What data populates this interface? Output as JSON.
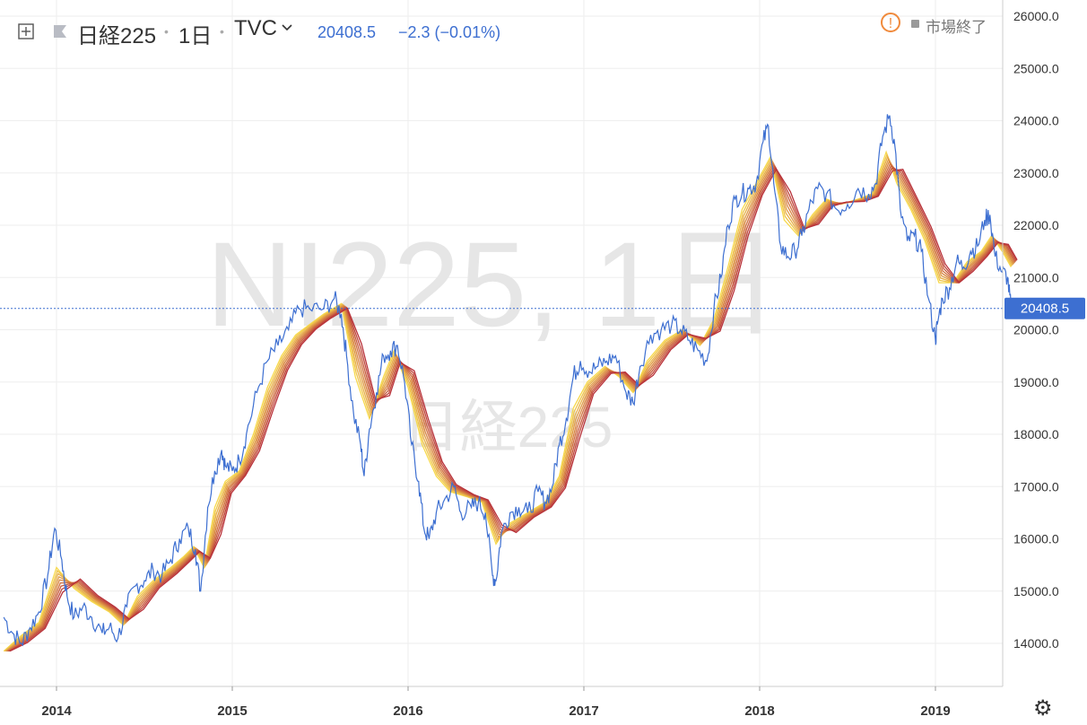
{
  "header": {
    "symbol": "日経225",
    "interval": "1日",
    "exchange": "TVC",
    "price": "20408.5",
    "change": "−2.3 (−0.01%)",
    "status": "市場終了"
  },
  "watermark": {
    "primary": "NI225, 1日",
    "secondary": "日経225"
  },
  "colors": {
    "price_line": "#3d6fd1",
    "ribbon_fast": "#f7d94c",
    "ribbon_slow": "#b8323a",
    "price_tag": "#3d6fd1",
    "grid": "#eeeeee"
  },
  "chart_data": {
    "type": "line",
    "ylim": [
      13200,
      26200
    ],
    "y_ticks": [
      "14000.0",
      "15000.0",
      "16000.0",
      "17000.0",
      "18000.0",
      "19000.0",
      "20000.0",
      "21000.0",
      "22000.0",
      "23000.0",
      "24000.0",
      "25000.0",
      "26000.0"
    ],
    "x_ticks": [
      "2014",
      "2015",
      "2016",
      "2017",
      "2018",
      "2019"
    ],
    "last_price": "20408.5",
    "series": [
      {
        "type": "price",
        "points": [
          [
            2013.7,
            14500
          ],
          [
            2013.75,
            14200
          ],
          [
            2013.8,
            14000
          ],
          [
            2013.85,
            14300
          ],
          [
            2013.9,
            14600
          ],
          [
            2013.95,
            15300
          ],
          [
            2013.99,
            16200
          ],
          [
            2014.03,
            15600
          ],
          [
            2014.06,
            14900
          ],
          [
            2014.1,
            14500
          ],
          [
            2014.15,
            14700
          ],
          [
            2014.2,
            14500
          ],
          [
            2014.26,
            14200
          ],
          [
            2014.3,
            14300
          ],
          [
            2014.35,
            14100
          ],
          [
            2014.4,
            14700
          ],
          [
            2014.45,
            15100
          ],
          [
            2014.5,
            15200
          ],
          [
            2014.55,
            15400
          ],
          [
            2014.6,
            15300
          ],
          [
            2014.65,
            15600
          ],
          [
            2014.7,
            16000
          ],
          [
            2014.75,
            16200
          ],
          [
            2014.79,
            15800
          ],
          [
            2014.82,
            15000
          ],
          [
            2014.86,
            16600
          ],
          [
            2014.9,
            17300
          ],
          [
            2014.94,
            17700
          ],
          [
            2014.96,
            17400
          ],
          [
            2015.0,
            17300
          ],
          [
            2015.04,
            17500
          ],
          [
            2015.08,
            18000
          ],
          [
            2015.14,
            18800
          ],
          [
            2015.2,
            19400
          ],
          [
            2015.26,
            19700
          ],
          [
            2015.32,
            20000
          ],
          [
            2015.38,
            20400
          ],
          [
            2015.44,
            20400
          ],
          [
            2015.52,
            20400
          ],
          [
            2015.58,
            20600
          ],
          [
            2015.62,
            20300
          ],
          [
            2015.65,
            19500
          ],
          [
            2015.69,
            18400
          ],
          [
            2015.73,
            17800
          ],
          [
            2015.75,
            17200
          ],
          [
            2015.78,
            18100
          ],
          [
            2015.82,
            18800
          ],
          [
            2015.86,
            19500
          ],
          [
            2015.9,
            19600
          ],
          [
            2015.94,
            19700
          ],
          [
            2015.98,
            19000
          ],
          [
            2016.02,
            17800
          ],
          [
            2016.06,
            17100
          ],
          [
            2016.09,
            16200
          ],
          [
            2016.12,
            16000
          ],
          [
            2016.16,
            16500
          ],
          [
            2016.2,
            16700
          ],
          [
            2016.26,
            17000
          ],
          [
            2016.3,
            16500
          ],
          [
            2016.36,
            16600
          ],
          [
            2016.4,
            16700
          ],
          [
            2016.44,
            16500
          ],
          [
            2016.48,
            15300
          ],
          [
            2016.5,
            15200
          ],
          [
            2016.53,
            16100
          ],
          [
            2016.58,
            16500
          ],
          [
            2016.63,
            16600
          ],
          [
            2016.68,
            16500
          ],
          [
            2016.74,
            16900
          ],
          [
            2016.78,
            16700
          ],
          [
            2016.82,
            17000
          ],
          [
            2016.86,
            17800
          ],
          [
            2016.9,
            18300
          ],
          [
            2016.94,
            19100
          ],
          [
            2016.98,
            19400
          ],
          [
            2017.03,
            19200
          ],
          [
            2017.08,
            19300
          ],
          [
            2017.13,
            19400
          ],
          [
            2017.18,
            19500
          ],
          [
            2017.24,
            18800
          ],
          [
            2017.28,
            18600
          ],
          [
            2017.32,
            19300
          ],
          [
            2017.38,
            19900
          ],
          [
            2017.44,
            20000
          ],
          [
            2017.5,
            20100
          ],
          [
            2017.55,
            20000
          ],
          [
            2017.6,
            19800
          ],
          [
            2017.65,
            19600
          ],
          [
            2017.7,
            19400
          ],
          [
            2017.74,
            20400
          ],
          [
            2017.78,
            21000
          ],
          [
            2017.82,
            22000
          ],
          [
            2017.86,
            22500
          ],
          [
            2017.9,
            22600
          ],
          [
            2017.94,
            22700
          ],
          [
            2017.98,
            22800
          ],
          [
            2018.02,
            23600
          ],
          [
            2018.05,
            23900
          ],
          [
            2018.08,
            22800
          ],
          [
            2018.12,
            21600
          ],
          [
            2018.16,
            21400
          ],
          [
            2018.2,
            21500
          ],
          [
            2018.24,
            21800
          ],
          [
            2018.28,
            22300
          ],
          [
            2018.33,
            22700
          ],
          [
            2018.38,
            22600
          ],
          [
            2018.44,
            22300
          ],
          [
            2018.5,
            22400
          ],
          [
            2018.56,
            22700
          ],
          [
            2018.62,
            22600
          ],
          [
            2018.66,
            22800
          ],
          [
            2018.7,
            23700
          ],
          [
            2018.74,
            24100
          ],
          [
            2018.77,
            23500
          ],
          [
            2018.8,
            22300
          ],
          [
            2018.84,
            21700
          ],
          [
            2018.88,
            21800
          ],
          [
            2018.92,
            21500
          ],
          [
            2018.96,
            20600
          ],
          [
            2019.0,
            19800
          ],
          [
            2019.01,
            20100
          ],
          [
            2019.04,
            20600
          ],
          [
            2019.08,
            20800
          ],
          [
            2019.12,
            21300
          ],
          [
            2019.16,
            21200
          ],
          [
            2019.2,
            21500
          ],
          [
            2019.24,
            21600
          ],
          [
            2019.28,
            22100
          ],
          [
            2019.31,
            22200
          ],
          [
            2019.34,
            21400
          ],
          [
            2019.38,
            21100
          ],
          [
            2019.41,
            21000
          ],
          [
            2019.43,
            20408.5
          ]
        ]
      },
      {
        "type": "ma_ribbon",
        "points": [
          [
            2013.7,
            13850
          ],
          [
            2013.8,
            14150
          ],
          [
            2013.9,
            14400
          ],
          [
            2014.0,
            15450
          ],
          [
            2014.1,
            15050
          ],
          [
            2014.2,
            14800
          ],
          [
            2014.3,
            14600
          ],
          [
            2014.38,
            14350
          ],
          [
            2014.46,
            14900
          ],
          [
            2014.55,
            15200
          ],
          [
            2014.65,
            15450
          ],
          [
            2014.72,
            15650
          ],
          [
            2014.78,
            15850
          ],
          [
            2014.84,
            15450
          ],
          [
            2014.9,
            16600
          ],
          [
            2014.96,
            17100
          ],
          [
            2015.04,
            17300
          ],
          [
            2015.12,
            18000
          ],
          [
            2015.2,
            18900
          ],
          [
            2015.28,
            19500
          ],
          [
            2015.36,
            19900
          ],
          [
            2015.44,
            20100
          ],
          [
            2015.52,
            20300
          ],
          [
            2015.62,
            20500
          ],
          [
            2015.7,
            19100
          ],
          [
            2015.78,
            18300
          ],
          [
            2015.86,
            19100
          ],
          [
            2015.92,
            19600
          ],
          [
            2016.0,
            18900
          ],
          [
            2016.08,
            17800
          ],
          [
            2016.16,
            17200
          ],
          [
            2016.24,
            16900
          ],
          [
            2016.34,
            16800
          ],
          [
            2016.42,
            16700
          ],
          [
            2016.5,
            15900
          ],
          [
            2016.58,
            16300
          ],
          [
            2016.68,
            16500
          ],
          [
            2016.78,
            16700
          ],
          [
            2016.86,
            17200
          ],
          [
            2016.94,
            18500
          ],
          [
            2017.02,
            19000
          ],
          [
            2017.12,
            19300
          ],
          [
            2017.2,
            19100
          ],
          [
            2017.28,
            18800
          ],
          [
            2017.36,
            19400
          ],
          [
            2017.46,
            19800
          ],
          [
            2017.56,
            20000
          ],
          [
            2017.66,
            19700
          ],
          [
            2017.74,
            20200
          ],
          [
            2017.82,
            21200
          ],
          [
            2017.9,
            22300
          ],
          [
            2017.98,
            22800
          ],
          [
            2018.06,
            23300
          ],
          [
            2018.14,
            22100
          ],
          [
            2018.22,
            21800
          ],
          [
            2018.3,
            22200
          ],
          [
            2018.38,
            22500
          ],
          [
            2018.46,
            22400
          ],
          [
            2018.56,
            22500
          ],
          [
            2018.64,
            22600
          ],
          [
            2018.72,
            23400
          ],
          [
            2018.78,
            22800
          ],
          [
            2018.86,
            22300
          ],
          [
            2018.94,
            21700
          ],
          [
            2019.02,
            20900
          ],
          [
            2019.1,
            20900
          ],
          [
            2019.18,
            21300
          ],
          [
            2019.26,
            21500
          ],
          [
            2019.32,
            21800
          ],
          [
            2019.38,
            21500
          ],
          [
            2019.43,
            21200
          ]
        ]
      }
    ]
  }
}
